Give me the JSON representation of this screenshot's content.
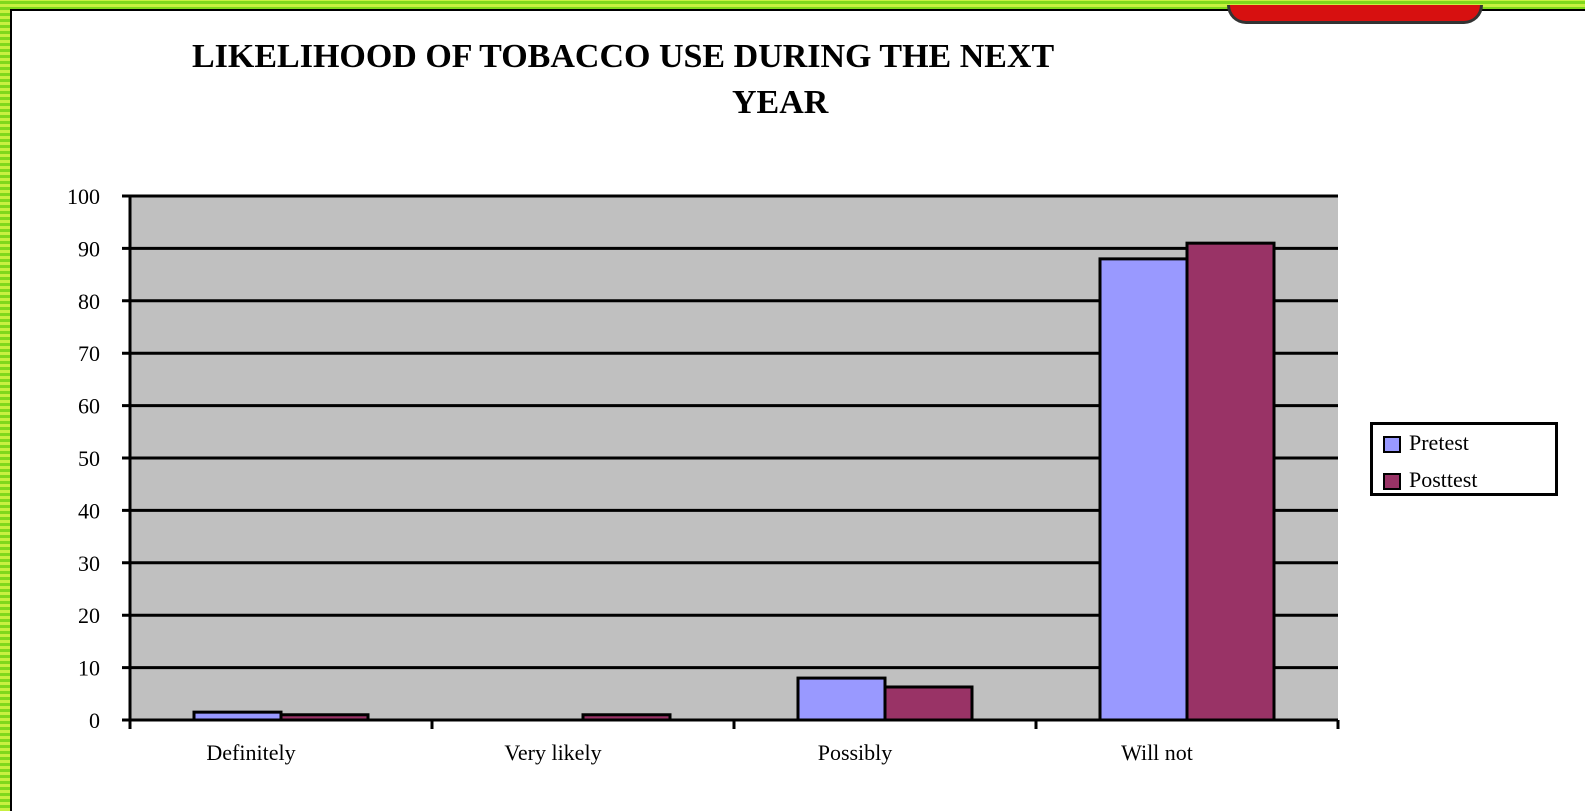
{
  "chart_data": {
    "type": "bar",
    "title_line1": "LIKELIHOOD OF TOBACCO USE DURING THE NEXT",
    "title_line2": "YEAR",
    "categories": [
      "Definitely",
      "Very likely",
      "Possibly",
      "Will not"
    ],
    "series": [
      {
        "name": "Pretest",
        "values": [
          1.5,
          0,
          8,
          88
        ],
        "color": "#9999ff"
      },
      {
        "name": "Posttest",
        "values": [
          1,
          1,
          6.3,
          91
        ],
        "color": "#993366"
      }
    ],
    "ylim": [
      0,
      100
    ],
    "yticks": [
      0,
      10,
      20,
      30,
      40,
      50,
      60,
      70,
      80,
      90,
      100
    ],
    "grid": true,
    "plot_background": "#c0c0c0",
    "legend_position": "right"
  }
}
